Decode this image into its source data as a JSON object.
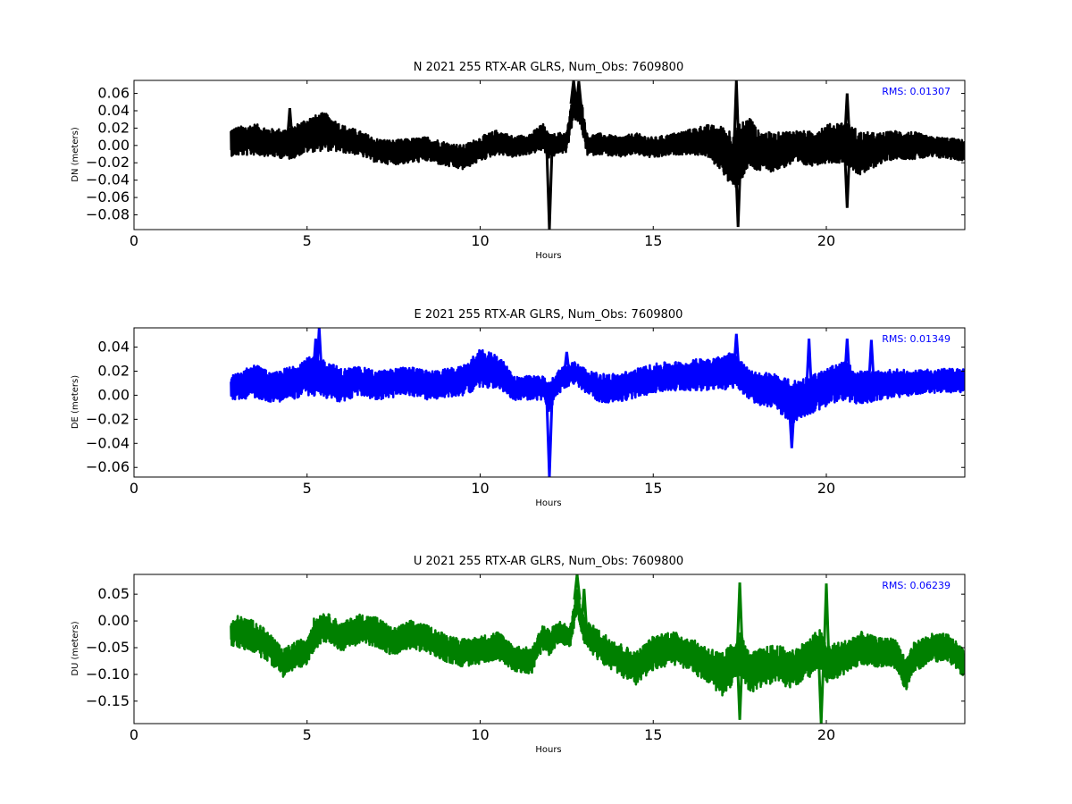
{
  "chart_data": [
    {
      "type": "line",
      "title": "N 2021 255 RTX-AR  GLRS, Num_Obs: 7609800",
      "xlabel": "Hours",
      "ylabel": "DN (meters)",
      "xlim": [
        0,
        24
      ],
      "ylim": [
        -0.097,
        0.075
      ],
      "xticks": [
        0,
        5,
        10,
        15,
        20
      ],
      "yticks": [
        -0.08,
        -0.06,
        -0.04,
        -0.02,
        0.0,
        0.02,
        0.04,
        0.06
      ],
      "ytick_labels": [
        "−0.08",
        "−0.06",
        "−0.04",
        "−0.02",
        "0.00",
        "0.02",
        "0.04",
        "0.06"
      ],
      "annotation": "RMS:  0.01307",
      "annotation_color": "#0000ff",
      "color": "#000000",
      "x": [
        2.8,
        3.5,
        4.0,
        4.5,
        5.0,
        5.5,
        6.0,
        6.5,
        7.0,
        7.5,
        8.0,
        8.5,
        9.0,
        9.5,
        10.0,
        10.5,
        11.0,
        11.5,
        11.8,
        12.0,
        12.2,
        12.5,
        12.7,
        12.9,
        13.1,
        13.5,
        14.0,
        14.5,
        15.0,
        15.5,
        16.0,
        16.5,
        17.0,
        17.3,
        17.5,
        17.8,
        18.0,
        18.5,
        19.0,
        19.5,
        20.0,
        20.5,
        21.0,
        21.5,
        22.0,
        22.5,
        23.0,
        23.5,
        24.0
      ],
      "y": [
        0.004,
        0.007,
        0.003,
        0.002,
        0.012,
        0.016,
        0.008,
        0.003,
        -0.006,
        -0.008,
        -0.006,
        -0.004,
        -0.01,
        -0.014,
        -0.004,
        0.004,
        -0.002,
        0.003,
        0.01,
        -0.002,
        0.002,
        0.004,
        0.048,
        0.04,
        0.0,
        0.002,
        -0.002,
        0.002,
        -0.003,
        0.001,
        0.004,
        0.006,
        -0.004,
        -0.018,
        -0.008,
        0.004,
        -0.006,
        -0.008,
        -0.002,
        -0.004,
        0.002,
        0.004,
        -0.01,
        -0.004,
        0.001,
        0.0,
        -0.002,
        -0.003,
        -0.006
      ],
      "band": [
        0.016,
        0.018,
        0.016,
        0.018,
        0.02,
        0.022,
        0.016,
        0.014,
        0.014,
        0.014,
        0.014,
        0.014,
        0.014,
        0.014,
        0.014,
        0.014,
        0.012,
        0.012,
        0.016,
        0.014,
        0.012,
        0.012,
        0.016,
        0.018,
        0.012,
        0.012,
        0.012,
        0.012,
        0.012,
        0.012,
        0.014,
        0.018,
        0.026,
        0.036,
        0.034,
        0.03,
        0.024,
        0.022,
        0.02,
        0.02,
        0.022,
        0.024,
        0.026,
        0.018,
        0.016,
        0.016,
        0.012,
        0.012,
        0.012
      ],
      "spikes": [
        [
          12.0,
          -0.097
        ],
        [
          12.7,
          0.075
        ],
        [
          12.85,
          0.074
        ],
        [
          17.4,
          0.075
        ],
        [
          17.45,
          -0.094
        ],
        [
          20.6,
          0.06
        ],
        [
          20.6,
          -0.072
        ],
        [
          4.5,
          0.043
        ]
      ]
    },
    {
      "type": "line",
      "title": "E 2021 255 RTX-AR  GLRS, Num_Obs: 7609800",
      "xlabel": "Hours",
      "ylabel": "DE (meters)",
      "xlim": [
        0,
        24
      ],
      "ylim": [
        -0.068,
        0.056
      ],
      "xticks": [
        0,
        5,
        10,
        15,
        20
      ],
      "yticks": [
        -0.06,
        -0.04,
        -0.02,
        0.0,
        0.02,
        0.04
      ],
      "ytick_labels": [
        "−0.06",
        "−0.04",
        "−0.02",
        "0.00",
        "0.02",
        "0.04"
      ],
      "annotation": "RMS:  0.01349",
      "annotation_color": "#0000ff",
      "color": "#0000ff",
      "x": [
        2.8,
        3.5,
        4.0,
        4.5,
        5.0,
        5.5,
        6.0,
        6.5,
        7.0,
        7.5,
        8.0,
        8.5,
        9.0,
        9.5,
        10.0,
        10.5,
        11.0,
        11.5,
        11.8,
        12.0,
        12.2,
        12.5,
        12.7,
        12.9,
        13.1,
        13.5,
        14.0,
        14.5,
        15.0,
        15.5,
        16.0,
        16.5,
        17.0,
        17.3,
        17.5,
        17.8,
        18.0,
        18.5,
        19.0,
        19.5,
        20.0,
        20.5,
        21.0,
        21.5,
        22.0,
        22.5,
        23.0,
        23.5,
        24.0
      ],
      "y": [
        0.006,
        0.012,
        0.006,
        0.01,
        0.016,
        0.014,
        0.008,
        0.012,
        0.008,
        0.01,
        0.012,
        0.008,
        0.01,
        0.012,
        0.022,
        0.02,
        0.006,
        0.006,
        0.006,
        -0.002,
        0.01,
        0.016,
        0.018,
        0.016,
        0.01,
        0.006,
        0.006,
        0.01,
        0.014,
        0.016,
        0.016,
        0.018,
        0.018,
        0.022,
        0.016,
        0.008,
        0.006,
        0.004,
        -0.006,
        0.0,
        0.006,
        0.012,
        0.006,
        0.008,
        0.01,
        0.01,
        0.012,
        0.012,
        0.012
      ],
      "band": [
        0.01,
        0.014,
        0.012,
        0.014,
        0.016,
        0.016,
        0.014,
        0.012,
        0.012,
        0.012,
        0.012,
        0.012,
        0.012,
        0.012,
        0.016,
        0.014,
        0.01,
        0.01,
        0.01,
        0.012,
        0.01,
        0.01,
        0.01,
        0.01,
        0.01,
        0.012,
        0.012,
        0.012,
        0.012,
        0.012,
        0.012,
        0.014,
        0.014,
        0.016,
        0.014,
        0.012,
        0.014,
        0.014,
        0.018,
        0.016,
        0.016,
        0.016,
        0.014,
        0.012,
        0.012,
        0.01,
        0.01,
        0.01,
        0.01
      ],
      "spikes": [
        [
          5.35,
          0.056
        ],
        [
          5.25,
          0.047
        ],
        [
          12.0,
          -0.068
        ],
        [
          12.5,
          0.036
        ],
        [
          17.4,
          0.051
        ],
        [
          19.0,
          -0.044
        ],
        [
          19.5,
          0.047
        ],
        [
          20.6,
          0.047
        ],
        [
          21.3,
          0.046
        ]
      ]
    },
    {
      "type": "line",
      "title": "U 2021 255 RTX-AR  GLRS, Num_Obs: 7609800",
      "xlabel": "Hours",
      "ylabel": "DU (meters)",
      "xlim": [
        0,
        24
      ],
      "ylim": [
        -0.192,
        0.087
      ],
      "xticks": [
        0,
        5,
        10,
        15,
        20
      ],
      "yticks": [
        -0.15,
        -0.1,
        -0.05,
        0.0,
        0.05
      ],
      "ytick_labels": [
        "−0.15",
        "−0.10",
        "−0.05",
        "0.00",
        "0.05"
      ],
      "annotation": "RMS:  0.06239",
      "annotation_color": "#0000ff",
      "color": "#008000",
      "x": [
        2.8,
        3.0,
        3.5,
        4.0,
        4.3,
        4.5,
        5.0,
        5.2,
        5.5,
        6.0,
        6.5,
        7.0,
        7.5,
        8.0,
        8.5,
        9.0,
        9.5,
        10.0,
        10.5,
        11.0,
        11.5,
        11.8,
        12.0,
        12.3,
        12.6,
        12.8,
        13.0,
        13.5,
        14.0,
        14.5,
        15.0,
        15.5,
        16.0,
        16.5,
        17.0,
        17.3,
        17.5,
        17.8,
        18.0,
        18.5,
        19.0,
        19.5,
        19.8,
        20.0,
        20.5,
        21.0,
        21.5,
        22.0,
        22.3,
        22.5,
        23.0,
        23.5,
        24.0
      ],
      "y": [
        -0.025,
        -0.02,
        -0.03,
        -0.055,
        -0.08,
        -0.07,
        -0.055,
        -0.025,
        -0.01,
        -0.03,
        -0.015,
        -0.02,
        -0.04,
        -0.025,
        -0.035,
        -0.05,
        -0.06,
        -0.055,
        -0.045,
        -0.07,
        -0.075,
        -0.03,
        -0.04,
        -0.02,
        -0.03,
        0.04,
        -0.02,
        -0.05,
        -0.07,
        -0.09,
        -0.06,
        -0.05,
        -0.06,
        -0.08,
        -0.1,
        -0.08,
        -0.06,
        -0.1,
        -0.09,
        -0.08,
        -0.09,
        -0.07,
        -0.05,
        -0.08,
        -0.07,
        -0.05,
        -0.06,
        -0.06,
        -0.1,
        -0.07,
        -0.05,
        -0.05,
        -0.08
      ],
      "band": [
        0.022,
        0.03,
        0.03,
        0.028,
        0.025,
        0.026,
        0.026,
        0.03,
        0.028,
        0.026,
        0.028,
        0.028,
        0.026,
        0.026,
        0.026,
        0.026,
        0.026,
        0.026,
        0.026,
        0.024,
        0.024,
        0.024,
        0.024,
        0.02,
        0.02,
        0.024,
        0.024,
        0.03,
        0.03,
        0.032,
        0.032,
        0.032,
        0.03,
        0.034,
        0.04,
        0.04,
        0.04,
        0.038,
        0.036,
        0.036,
        0.036,
        0.036,
        0.036,
        0.036,
        0.032,
        0.03,
        0.028,
        0.028,
        0.03,
        0.028,
        0.026,
        0.026,
        0.026
      ],
      "spikes": [
        [
          12.8,
          0.087
        ],
        [
          17.5,
          -0.185
        ],
        [
          17.5,
          0.072
        ],
        [
          19.85,
          -0.192
        ],
        [
          20.0,
          0.07
        ],
        [
          13.0,
          0.06
        ]
      ]
    }
  ]
}
